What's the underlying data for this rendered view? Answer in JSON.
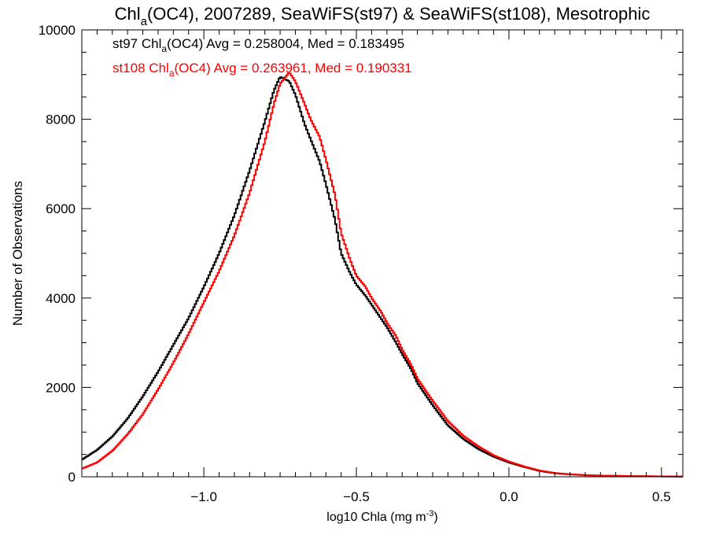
{
  "chart_data": {
    "type": "line",
    "title": {
      "pre": "Chl",
      "sub": "a",
      "post": "(OC4), 2007289, SeaWiFS(st97) & SeaWiFS(st108), Mesotrophic"
    },
    "xlabel": {
      "pre": "log10 Chla (mg m",
      "sup": "-3",
      "post": ")"
    },
    "ylabel": "Number of Observations",
    "xlim": [
      -1.4,
      0.57
    ],
    "ylim": [
      0,
      10000
    ],
    "x_ticks": [
      -1.0,
      -0.5,
      0.0,
      0.5
    ],
    "x_tick_labels": [
      "−1.0",
      "−0.5",
      "0.0",
      "0.5"
    ],
    "y_ticks": [
      0,
      2000,
      4000,
      6000,
      8000,
      10000
    ],
    "y_tick_labels": [
      "0",
      "2000",
      "4000",
      "6000",
      "8000",
      "10000"
    ],
    "grid": false,
    "legend_position": "top-left",
    "series": [
      {
        "name": "st97",
        "color": "#000000",
        "label": {
          "pre": "st97 Chl",
          "sub": "a",
          "post": "(OC4) Avg = 0.258004, Med = 0.183495"
        },
        "points": [
          [
            -1.4,
            380
          ],
          [
            -1.35,
            600
          ],
          [
            -1.3,
            900
          ],
          [
            -1.25,
            1300
          ],
          [
            -1.2,
            1800
          ],
          [
            -1.15,
            2350
          ],
          [
            -1.1,
            2950
          ],
          [
            -1.05,
            3550
          ],
          [
            -1.0,
            4250
          ],
          [
            -0.95,
            5000
          ],
          [
            -0.9,
            5850
          ],
          [
            -0.85,
            6850
          ],
          [
            -0.8,
            7950
          ],
          [
            -0.77,
            8650
          ],
          [
            -0.75,
            8950
          ],
          [
            -0.72,
            8850
          ],
          [
            -0.7,
            8550
          ],
          [
            -0.67,
            7900
          ],
          [
            -0.65,
            7550
          ],
          [
            -0.62,
            7050
          ],
          [
            -0.6,
            6550
          ],
          [
            -0.57,
            5750
          ],
          [
            -0.55,
            5000
          ],
          [
            -0.52,
            4550
          ],
          [
            -0.5,
            4300
          ],
          [
            -0.47,
            4050
          ],
          [
            -0.45,
            3850
          ],
          [
            -0.42,
            3550
          ],
          [
            -0.4,
            3350
          ],
          [
            -0.37,
            3000
          ],
          [
            -0.35,
            2750
          ],
          [
            -0.32,
            2400
          ],
          [
            -0.3,
            2100
          ],
          [
            -0.27,
            1800
          ],
          [
            -0.25,
            1600
          ],
          [
            -0.2,
            1150
          ],
          [
            -0.15,
            850
          ],
          [
            -0.1,
            620
          ],
          [
            -0.05,
            450
          ],
          [
            0.0,
            320
          ],
          [
            0.05,
            220
          ],
          [
            0.1,
            130
          ],
          [
            0.15,
            80
          ],
          [
            0.2,
            55
          ],
          [
            0.25,
            35
          ],
          [
            0.3,
            25
          ],
          [
            0.4,
            15
          ],
          [
            0.5,
            8
          ],
          [
            0.57,
            5
          ]
        ]
      },
      {
        "name": "st108",
        "color": "#ff0000",
        "label": {
          "pre": "st108 Chl",
          "sub": "a",
          "post": "(OC4) Avg = 0.263961, Med = 0.190331"
        },
        "points": [
          [
            -1.4,
            180
          ],
          [
            -1.35,
            320
          ],
          [
            -1.3,
            580
          ],
          [
            -1.25,
            950
          ],
          [
            -1.2,
            1400
          ],
          [
            -1.15,
            1950
          ],
          [
            -1.1,
            2550
          ],
          [
            -1.05,
            3200
          ],
          [
            -1.0,
            3900
          ],
          [
            -0.95,
            4600
          ],
          [
            -0.9,
            5400
          ],
          [
            -0.85,
            6350
          ],
          [
            -0.8,
            7500
          ],
          [
            -0.77,
            8350
          ],
          [
            -0.75,
            8800
          ],
          [
            -0.72,
            9050
          ],
          [
            -0.7,
            8850
          ],
          [
            -0.67,
            8350
          ],
          [
            -0.65,
            8000
          ],
          [
            -0.62,
            7600
          ],
          [
            -0.6,
            7100
          ],
          [
            -0.57,
            6300
          ],
          [
            -0.55,
            5450
          ],
          [
            -0.52,
            4850
          ],
          [
            -0.5,
            4500
          ],
          [
            -0.47,
            4250
          ],
          [
            -0.45,
            4000
          ],
          [
            -0.42,
            3700
          ],
          [
            -0.4,
            3450
          ],
          [
            -0.37,
            3150
          ],
          [
            -0.35,
            2850
          ],
          [
            -0.32,
            2500
          ],
          [
            -0.3,
            2200
          ],
          [
            -0.27,
            1900
          ],
          [
            -0.25,
            1700
          ],
          [
            -0.2,
            1250
          ],
          [
            -0.15,
            920
          ],
          [
            -0.1,
            680
          ],
          [
            -0.05,
            480
          ],
          [
            0.0,
            340
          ],
          [
            0.05,
            230
          ],
          [
            0.1,
            140
          ],
          [
            0.15,
            85
          ],
          [
            0.2,
            58
          ],
          [
            0.25,
            38
          ],
          [
            0.3,
            28
          ],
          [
            0.4,
            16
          ],
          [
            0.5,
            9
          ],
          [
            0.57,
            6
          ]
        ]
      }
    ]
  }
}
